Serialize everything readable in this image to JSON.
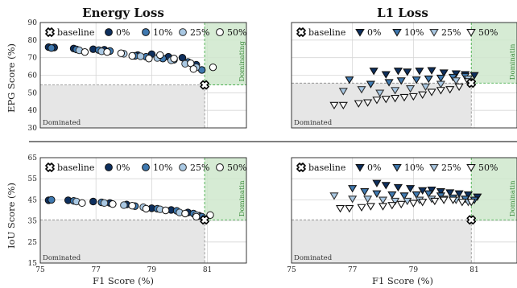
{
  "colors": {
    "baseline": "#ffffff",
    "0%": "#0d2f5e",
    "10%": "#3f79b0",
    "25%": "#a9c8e3",
    "50%": "#ffffff",
    "dominated_fill": "#e6e6e6",
    "dominating_fill": "#cfe8cc",
    "dominating_edge": "#4caf50"
  },
  "chart_data": [
    {
      "type": "scatter",
      "title": "Energy Loss",
      "marker": "circle",
      "xlabel": "",
      "ylabel": "EPG Score (%)",
      "xlim": [
        75,
        82.4
      ],
      "ylim": [
        30,
        90
      ],
      "xticks": [
        75,
        77,
        79,
        81
      ],
      "yticks": [
        30,
        40,
        50,
        60,
        70,
        80,
        90
      ],
      "show_xtick_labels": false,
      "grid": true,
      "baseline": {
        "x": 80.9,
        "y": 54.5
      },
      "zone_labels": {
        "dominated": "Dominated",
        "dominating": "Dominating"
      },
      "legend": {
        "location": "top",
        "entries": [
          "baseline",
          "0%",
          "10%",
          "25%",
          "50%"
        ]
      },
      "series": [
        {
          "name": "0%",
          "points": [
            [
              75.3,
              76
            ],
            [
              75.5,
              75.8
            ],
            [
              76.2,
              75.2
            ],
            [
              76.9,
              74.8
            ],
            [
              77.3,
              74.5
            ],
            [
              78.5,
              71.5
            ],
            [
              79.0,
              72
            ],
            [
              79.6,
              70.5
            ],
            [
              80.1,
              70
            ],
            [
              80.6,
              66
            ]
          ]
        },
        {
          "name": "10%",
          "points": [
            [
              75.4,
              75.5
            ],
            [
              76.3,
              74.7
            ],
            [
              77.1,
              74.3
            ],
            [
              77.5,
              73.8
            ],
            [
              78.4,
              71
            ],
            [
              78.8,
              70.5
            ],
            [
              79.4,
              69.5
            ],
            [
              79.8,
              68.8
            ],
            [
              80.3,
              67.5
            ],
            [
              80.8,
              63
            ]
          ]
        },
        {
          "name": "25%",
          "points": [
            [
              76.4,
              74.2
            ],
            [
              77.2,
              73.6
            ],
            [
              78.0,
              72.2
            ],
            [
              78.6,
              70.8
            ],
            [
              79.2,
              69.8
            ],
            [
              79.7,
              68.5
            ],
            [
              80.2,
              66.5
            ],
            [
              80.6,
              64.5
            ]
          ]
        },
        {
          "name": "50%",
          "points": [
            [
              76.6,
              73.2
            ],
            [
              77.4,
              73.2
            ],
            [
              77.9,
              72.5
            ],
            [
              78.3,
              71
            ],
            [
              78.9,
              69.5
            ],
            [
              79.3,
              71.5
            ],
            [
              79.8,
              69.5
            ],
            [
              80.4,
              66.8
            ],
            [
              80.5,
              63.5
            ],
            [
              81.2,
              64.5
            ]
          ]
        }
      ]
    },
    {
      "type": "scatter",
      "title": "L1 Loss",
      "marker": "triangle-down",
      "xlabel": "",
      "ylabel": "",
      "xlim": [
        75,
        82.4
      ],
      "ylim": [
        30,
        90
      ],
      "xticks": [
        75,
        77,
        79,
        81
      ],
      "yticks": [
        30,
        40,
        50,
        60,
        70,
        80,
        90
      ],
      "show_xtick_labels": false,
      "grid": true,
      "baseline": {
        "x": 80.9,
        "y": 55.5
      },
      "zone_labels": {
        "dominated": "Dominated",
        "dominating": "Dominatin"
      },
      "legend": {
        "location": "top",
        "entries": [
          "baseline",
          "0%",
          "10%",
          "25%",
          "50%"
        ]
      },
      "series": [
        {
          "name": "0%",
          "points": [
            [
              77.7,
              62.5
            ],
            [
              78.1,
              60.5
            ],
            [
              78.5,
              62.5
            ],
            [
              78.8,
              62
            ],
            [
              79.2,
              62.5
            ],
            [
              79.6,
              62.8
            ],
            [
              80.0,
              61.5
            ],
            [
              80.4,
              61
            ],
            [
              80.7,
              60.5
            ],
            [
              81.0,
              60
            ]
          ]
        },
        {
          "name": "10%",
          "points": [
            [
              76.9,
              57.5
            ],
            [
              77.6,
              55
            ],
            [
              78.2,
              56
            ],
            [
              78.6,
              57
            ],
            [
              79.1,
              57.5
            ],
            [
              79.5,
              58
            ],
            [
              79.9,
              58.5
            ],
            [
              80.3,
              59
            ],
            [
              80.7,
              59.5
            ]
          ]
        },
        {
          "name": "25%",
          "points": [
            [
              76.7,
              51
            ],
            [
              77.3,
              52
            ],
            [
              77.9,
              50
            ],
            [
              78.4,
              51.5
            ],
            [
              78.9,
              52.5
            ],
            [
              79.4,
              53.5
            ],
            [
              79.9,
              55
            ],
            [
              80.4,
              57
            ],
            [
              80.8,
              58
            ]
          ]
        },
        {
          "name": "50%",
          "points": [
            [
              76.4,
              43
            ],
            [
              76.7,
              43
            ],
            [
              77.2,
              44
            ],
            [
              77.5,
              44.5
            ],
            [
              77.8,
              46
            ],
            [
              78.1,
              46.5
            ],
            [
              78.4,
              47
            ],
            [
              78.7,
              47.5
            ],
            [
              79.0,
              48
            ],
            [
              79.3,
              49
            ],
            [
              79.6,
              50.5
            ],
            [
              79.9,
              51.5
            ],
            [
              80.2,
              52
            ],
            [
              80.5,
              53.5
            ],
            [
              80.8,
              56.5
            ]
          ]
        }
      ]
    },
    {
      "type": "scatter",
      "title": "",
      "marker": "circle",
      "xlabel": "F1 Score (%)",
      "ylabel": "IoU Score (%)",
      "xlim": [
        75,
        82.4
      ],
      "ylim": [
        15,
        65
      ],
      "xticks": [
        75,
        77,
        79,
        81
      ],
      "yticks": [
        15,
        25,
        35,
        45,
        55,
        65
      ],
      "show_xtick_labels": true,
      "grid": true,
      "baseline": {
        "x": 80.9,
        "y": 35.5
      },
      "zone_labels": {
        "dominated": "Dominated",
        "dominating": "Dominatin"
      },
      "legend": {
        "location": "top",
        "entries": [
          "baseline",
          "0%",
          "10%",
          "25%",
          "50%"
        ]
      },
      "series": [
        {
          "name": "0%",
          "points": [
            [
              75.3,
              44.8
            ],
            [
              76.0,
              44.8
            ],
            [
              76.9,
              44.2
            ],
            [
              77.5,
              43.5
            ],
            [
              78.1,
              42.8
            ],
            [
              79.0,
              41
            ],
            [
              79.7,
              40.2
            ],
            [
              80.3,
              39
            ],
            [
              80.7,
              37.5
            ]
          ]
        },
        {
          "name": "10%",
          "points": [
            [
              75.4,
              45
            ],
            [
              76.2,
              44.5
            ],
            [
              77.2,
              43.8
            ],
            [
              78.4,
              42
            ],
            [
              79.2,
              40.8
            ],
            [
              79.9,
              39.8
            ],
            [
              80.5,
              38.5
            ],
            [
              80.8,
              37
            ]
          ]
        },
        {
          "name": "25%",
          "points": [
            [
              76.3,
              44.2
            ],
            [
              77.3,
              43.5
            ],
            [
              78.0,
              42.5
            ],
            [
              78.7,
              41.5
            ],
            [
              79.3,
              40.5
            ],
            [
              80.0,
              39
            ],
            [
              80.6,
              37.8
            ]
          ]
        },
        {
          "name": "50%",
          "points": [
            [
              76.5,
              43.5
            ],
            [
              77.6,
              43
            ],
            [
              78.3,
              42.2
            ],
            [
              78.8,
              40.8
            ],
            [
              79.5,
              40
            ],
            [
              80.2,
              38.5
            ],
            [
              80.6,
              37
            ],
            [
              81.1,
              37.8
            ]
          ]
        }
      ]
    },
    {
      "type": "scatter",
      "title": "",
      "marker": "triangle-down",
      "xlabel": "F1 Score (%)",
      "ylabel": "",
      "xlim": [
        75,
        82.4
      ],
      "ylim": [
        15,
        65
      ],
      "xticks": [
        75,
        77,
        79,
        81
      ],
      "yticks": [
        15,
        25,
        35,
        45,
        55,
        65
      ],
      "show_xtick_labels": true,
      "grid": true,
      "baseline": {
        "x": 80.9,
        "y": 35.5
      },
      "zone_labels": {
        "dominated": "Dominated",
        "dominating": "Dominatin"
      },
      "legend": {
        "location": "top",
        "entries": [
          "baseline",
          "0%",
          "10%",
          "25%",
          "50%"
        ]
      },
      "series": [
        {
          "name": "0%",
          "points": [
            [
              77.8,
              53
            ],
            [
              78.1,
              52
            ],
            [
              78.5,
              51
            ],
            [
              78.9,
              50.5
            ],
            [
              79.3,
              49.5
            ],
            [
              79.6,
              49.8
            ],
            [
              79.9,
              49
            ],
            [
              80.2,
              48.5
            ],
            [
              80.5,
              48
            ],
            [
              80.8,
              47.5
            ],
            [
              81.1,
              46.5
            ]
          ]
        },
        {
          "name": "10%",
          "points": [
            [
              77.0,
              50.5
            ],
            [
              77.4,
              49
            ],
            [
              77.8,
              48
            ],
            [
              78.3,
              47.5
            ],
            [
              78.7,
              47
            ],
            [
              79.1,
              47.5
            ],
            [
              79.5,
              48
            ],
            [
              79.9,
              47
            ],
            [
              80.3,
              46
            ],
            [
              80.7,
              45.5
            ],
            [
              81.0,
              45
            ]
          ]
        },
        {
          "name": "25%",
          "points": [
            [
              76.4,
              47
            ],
            [
              77.0,
              45.5
            ],
            [
              77.5,
              45.5
            ],
            [
              78.0,
              45
            ],
            [
              78.4,
              44.5
            ],
            [
              78.8,
              44.5
            ],
            [
              79.2,
              45
            ],
            [
              79.6,
              45.5
            ],
            [
              80.0,
              45.5
            ],
            [
              80.4,
              45
            ],
            [
              80.8,
              44
            ]
          ]
        },
        {
          "name": "50%",
          "points": [
            [
              76.6,
              41
            ],
            [
              76.9,
              41
            ],
            [
              77.3,
              41.5
            ],
            [
              77.6,
              42
            ],
            [
              78.0,
              42
            ],
            [
              78.3,
              42.5
            ],
            [
              78.6,
              43
            ],
            [
              79.0,
              43.5
            ],
            [
              79.3,
              44
            ],
            [
              79.7,
              44.5
            ],
            [
              80.0,
              45
            ],
            [
              80.3,
              45
            ],
            [
              80.6,
              44
            ],
            [
              80.9,
              44
            ]
          ]
        }
      ]
    }
  ]
}
